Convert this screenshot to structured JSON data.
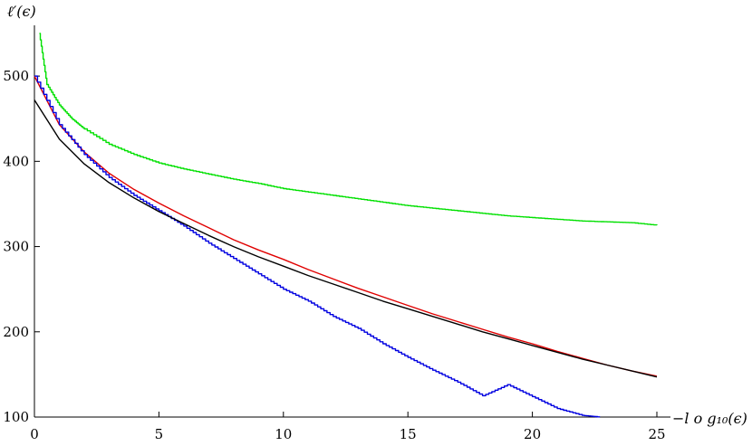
{
  "chart_data": {
    "type": "line",
    "xlabel": "−l o g₁₀(ϵ)",
    "ylabel": "ℓ′(ϵ)",
    "xlim": [
      0,
      25
    ],
    "ylim": [
      100,
      550
    ],
    "xticks": [
      0,
      5,
      10,
      15,
      20,
      25
    ],
    "yticks": [
      100,
      200,
      300,
      400,
      500
    ],
    "grid": false,
    "series": [
      {
        "color": "#00e000",
        "style": "stepped",
        "x": [
          0.2,
          0.5,
          1,
          1.5,
          2,
          3,
          4,
          5,
          6,
          7,
          8,
          9,
          10,
          11,
          12,
          13,
          14,
          15,
          16,
          17,
          18,
          19,
          20,
          21,
          22,
          23,
          24,
          25
        ],
        "y": [
          550,
          490,
          466,
          450,
          438,
          420,
          408,
          398,
          391,
          385,
          379,
          374,
          368,
          364,
          360,
          356,
          352,
          348,
          345,
          342,
          339,
          336,
          334,
          332,
          330,
          329,
          328,
          325
        ]
      },
      {
        "color": "#e00000",
        "style": "smooth",
        "x": [
          0,
          1,
          2,
          3,
          4,
          5,
          6,
          7,
          8,
          9,
          10,
          11,
          12,
          13,
          14,
          15,
          16,
          17,
          18,
          19,
          20,
          21,
          22,
          23,
          24,
          25
        ],
        "y": [
          500,
          443,
          411,
          386,
          367,
          351,
          336,
          322,
          308,
          296,
          285,
          273,
          262,
          251,
          241,
          231,
          221,
          212,
          203,
          194,
          186,
          177,
          169,
          161,
          154,
          148
        ]
      },
      {
        "color": "#0000e0",
        "style": "stepped",
        "x": [
          0,
          1,
          2,
          3,
          4,
          5,
          6,
          7,
          8,
          9,
          10,
          11,
          12,
          13,
          14,
          15,
          16,
          17,
          18,
          19,
          20,
          21,
          22,
          22.7
        ],
        "y": [
          500,
          443,
          408,
          381,
          360,
          342,
          324,
          304,
          286,
          268,
          250,
          236,
          218,
          204,
          186,
          170,
          155,
          141,
          125,
          138,
          124,
          110,
          102,
          100
        ]
      },
      {
        "color": "#000000",
        "style": "smooth",
        "x": [
          0,
          1,
          2,
          3,
          4,
          5,
          6,
          7,
          8,
          9,
          10,
          11,
          12,
          13,
          14,
          15,
          16,
          17,
          18,
          19,
          20,
          21,
          22,
          23,
          24,
          25
        ],
        "y": [
          472,
          426,
          397,
          375,
          357,
          341,
          327,
          313,
          300,
          288,
          277,
          266,
          256,
          246,
          236,
          227,
          218,
          209,
          200,
          192,
          184,
          176,
          168,
          161,
          154,
          147
        ]
      }
    ]
  }
}
